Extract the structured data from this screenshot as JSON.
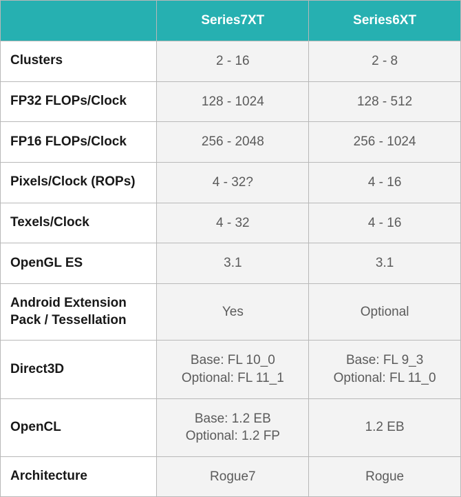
{
  "table": {
    "type": "table",
    "header_bg_color": "#26b0b1",
    "header_text_color": "#ffffff",
    "label_bg_color": "#ffffff",
    "label_text_color": "#181818",
    "value_bg_color": "#f3f3f3",
    "value_text_color": "#5b5b5b",
    "border_color": "#b8b8b8",
    "header_fontsize": 19,
    "label_fontsize": 19,
    "value_fontsize": 19,
    "columns": [
      "",
      "Series7XT",
      "Series6XT"
    ],
    "column_widths_pct": [
      34,
      33,
      33
    ],
    "rows": [
      {
        "label": "Clusters",
        "col1": "2 - 16",
        "col2": "2 - 8"
      },
      {
        "label": "FP32 FLOPs/Clock",
        "col1": "128 - 1024",
        "col2": "128 - 512"
      },
      {
        "label": "FP16 FLOPs/Clock",
        "col1": "256 - 2048",
        "col2": "256 - 1024"
      },
      {
        "label": "Pixels/Clock (ROPs)",
        "col1": "4 - 32?",
        "col2": "4 - 16"
      },
      {
        "label": "Texels/Clock",
        "col1": "4 - 32",
        "col2": "4 - 16"
      },
      {
        "label": "OpenGL ES",
        "col1": "3.1",
        "col2": "3.1"
      },
      {
        "label": "Android Extension Pack / Tessellation",
        "col1": "Yes",
        "col2": "Optional"
      },
      {
        "label": "Direct3D",
        "col1": "Base: FL 10_0\nOptional: FL 11_1",
        "col2": "Base: FL 9_3\nOptional: FL 11_0"
      },
      {
        "label": "OpenCL",
        "col1": "Base: 1.2 EB\nOptional: 1.2 FP",
        "col2": "1.2 EB"
      },
      {
        "label": "Architecture",
        "col1": "Rogue7",
        "col2": "Rogue"
      }
    ]
  }
}
